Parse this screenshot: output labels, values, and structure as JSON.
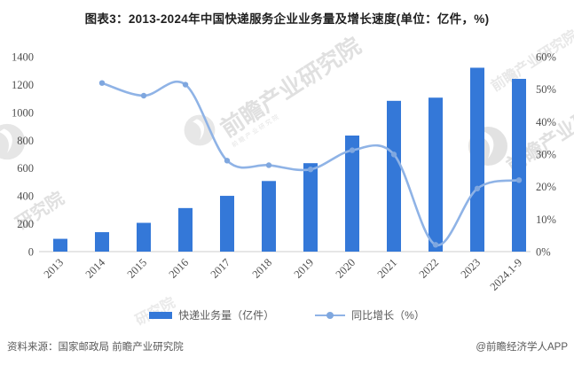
{
  "page": {
    "title": "图表3：2013-2024年中国快递服务企业业务量及增长速度(单位：亿件，%)"
  },
  "chart_data": {
    "type": "combo_bar_line",
    "categories": [
      "2013",
      "2014",
      "2015",
      "2016",
      "2017",
      "2018",
      "2019",
      "2020",
      "2021",
      "2022",
      "2023",
      "2024.1-9"
    ],
    "series": [
      {
        "name": "快递业务量（亿件）",
        "type": "bar",
        "y_axis": "left",
        "values": [
          91.9,
          139.6,
          206.7,
          312.8,
          400.6,
          507.1,
          635.2,
          833.6,
          1083.0,
          1105.8,
          1320.7,
          1240.8
        ]
      },
      {
        "name": "同比增长（%）",
        "type": "line",
        "y_axis": "right",
        "values": [
          null,
          51.9,
          48.0,
          51.4,
          28.0,
          26.6,
          25.3,
          31.2,
          29.9,
          2.1,
          19.4,
          22.0
        ]
      }
    ],
    "left_axis": {
      "min": 0,
      "max": 1400,
      "tick_step": 200,
      "tick_labels": [
        "0",
        "200",
        "400",
        "600",
        "800",
        "1000",
        "1200",
        "1400"
      ]
    },
    "right_axis": {
      "min": 0,
      "max": 60,
      "tick_step": 10,
      "tick_labels": [
        "0%",
        "10%",
        "20%",
        "30%",
        "40%",
        "50%",
        "60%"
      ]
    },
    "grid": false,
    "legend_position": "bottom",
    "x_label_rotation_deg": -45
  },
  "legend": {
    "items": [
      {
        "label": "快递业务量（亿件）",
        "swatch": "bar"
      },
      {
        "label": "同比增长（%）",
        "swatch": "line"
      }
    ]
  },
  "footer": {
    "source": "资料来源：国家邮政局 前瞻产业研究院",
    "credit": "@前瞻经济学人APP"
  },
  "watermarks": {
    "brand_text": "前瞻产业研究院",
    "short_text": "研究院"
  },
  "colors": {
    "bar": "#3478d8",
    "line": "#8fb3e6",
    "marker": "#7fa7df",
    "baseline": "#d8d8d8",
    "axis_text": "#4d4d4d",
    "title_text": "#1f1f1f",
    "muted_text": "#595959",
    "watermark": "#d9d9d9"
  }
}
